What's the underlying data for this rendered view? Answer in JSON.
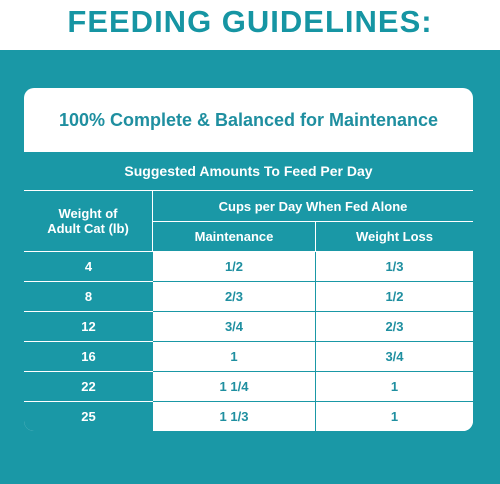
{
  "headline": "FEEDING GUIDELINES:",
  "card": {
    "title": "100% Complete & Balanced for Maintenance",
    "table": {
      "caption": "Suggested Amounts To Feed Per Day",
      "weight_header_line1": "Weight of",
      "weight_header_line2": "Adult Cat (lb)",
      "group_header": "Cups per Day When Fed Alone",
      "col_maintenance": "Maintenance",
      "col_weight_loss": "Weight Loss",
      "rows": [
        {
          "weight": "4",
          "maintenance": "1/2",
          "weight_loss": "1/3"
        },
        {
          "weight": "8",
          "maintenance": "2/3",
          "weight_loss": "1/2"
        },
        {
          "weight": "12",
          "maintenance": "3/4",
          "weight_loss": "2/3"
        },
        {
          "weight": "16",
          "maintenance": "1",
          "weight_loss": "3/4"
        },
        {
          "weight": "22",
          "maintenance": "1 1/4",
          "weight_loss": "1"
        },
        {
          "weight": "25",
          "maintenance": "1 1/3",
          "weight_loss": "1"
        }
      ]
    }
  },
  "colors": {
    "teal": "#1a98a6",
    "text_teal": "#1f8fa0",
    "white": "#ffffff"
  }
}
